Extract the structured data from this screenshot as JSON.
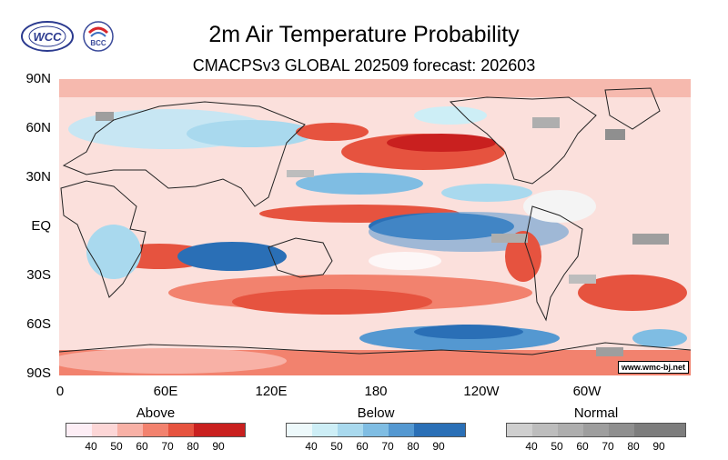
{
  "header": {
    "title": "2m Air Temperature Probability",
    "subtitle": "CMACPSv3 GLOBAL 202509 forecast: 202603",
    "logos": [
      {
        "name": "wcc-logo",
        "text": "WCC"
      },
      {
        "name": "bcc-logo",
        "text": "BCC"
      }
    ]
  },
  "map": {
    "y_labels": [
      "90N",
      "60N",
      "30N",
      "EQ",
      "30S",
      "60S",
      "90S"
    ],
    "x_labels": [
      "0",
      "60E",
      "120E",
      "180",
      "120W",
      "60W"
    ],
    "watermark": "www.wmc-bj.net"
  },
  "legends": [
    {
      "title": "Above",
      "ticks": [
        "40",
        "50",
        "60",
        "70",
        "80",
        "90"
      ],
      "colors": [
        "#fdeef5",
        "#fcd6d6",
        "#f8b1a6",
        "#f2826e",
        "#e6533f",
        "#c9201f",
        "#c9201f"
      ]
    },
    {
      "title": "Below",
      "ticks": [
        "40",
        "50",
        "60",
        "70",
        "80",
        "90"
      ],
      "colors": [
        "#edf9fb",
        "#cdeef6",
        "#a9d9ee",
        "#7fbde3",
        "#5498d1",
        "#2a6fb6",
        "#2a6fb6"
      ]
    },
    {
      "title": "Normal",
      "ticks": [
        "40",
        "50",
        "60",
        "70",
        "80",
        "90"
      ],
      "colors": [
        "#cfcfcf",
        "#bdbdbd",
        "#aeaeae",
        "#9e9e9e",
        "#8f8f8f",
        "#7d7d7d",
        "#7d7d7d"
      ]
    }
  ]
}
